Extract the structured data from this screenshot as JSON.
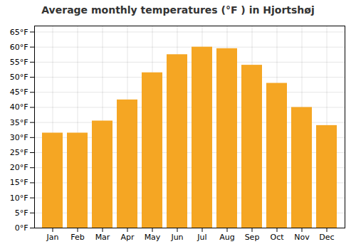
{
  "chart_data": {
    "type": "bar",
    "title": "Average monthly temperatures (°F ) in Hjortshøj",
    "categories": [
      "Jan",
      "Feb",
      "Mar",
      "Apr",
      "May",
      "Jun",
      "Jul",
      "Aug",
      "Sep",
      "Oct",
      "Nov",
      "Dec"
    ],
    "values": [
      31.5,
      31.5,
      35.5,
      42.5,
      51.5,
      57.5,
      60.0,
      59.5,
      54.0,
      48.0,
      40.0,
      34.0
    ],
    "color": "#F5A623",
    "ylim": [
      0,
      67
    ],
    "yticks": [
      {
        "value": 0,
        "label": "0°F"
      },
      {
        "value": 5,
        "label": "5°F"
      },
      {
        "value": 10,
        "label": "10°F"
      },
      {
        "value": 15,
        "label": "15°F"
      },
      {
        "value": 20,
        "label": "20°F"
      },
      {
        "value": 25,
        "label": "25°F"
      },
      {
        "value": 30,
        "label": "30°F"
      },
      {
        "value": 35,
        "label": "35°F"
      },
      {
        "value": 40,
        "label": "40°F"
      },
      {
        "value": 45,
        "label": "45°F"
      },
      {
        "value": 50,
        "label": "50°F"
      },
      {
        "value": 55,
        "label": "55°F"
      },
      {
        "value": 60,
        "label": "60°F"
      },
      {
        "value": 65,
        "label": "65°F"
      }
    ],
    "grid": true
  }
}
